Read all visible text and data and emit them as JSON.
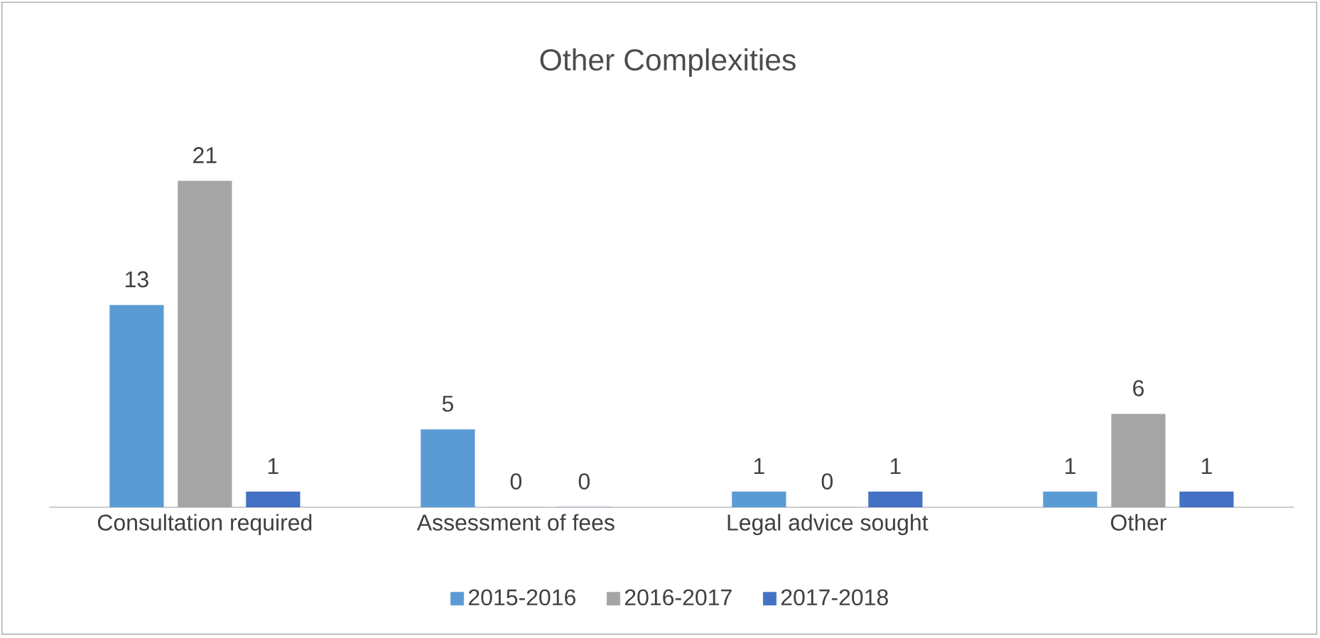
{
  "chart_data": {
    "type": "bar",
    "title": "Other Complexities",
    "categories": [
      "Consultation required",
      "Assessment of fees",
      "Legal advice sought",
      "Other"
    ],
    "series": [
      {
        "name": "2015-2016",
        "color": "#5b9bd5",
        "values": [
          13,
          5,
          1,
          1
        ]
      },
      {
        "name": "2016-2017",
        "color": "#a5a5a5",
        "values": [
          21,
          0,
          0,
          6
        ]
      },
      {
        "name": "2017-2018",
        "color": "#4472c4",
        "values": [
          1,
          0,
          1,
          1
        ]
      }
    ],
    "data_labels": true,
    "legend": "bottom"
  }
}
